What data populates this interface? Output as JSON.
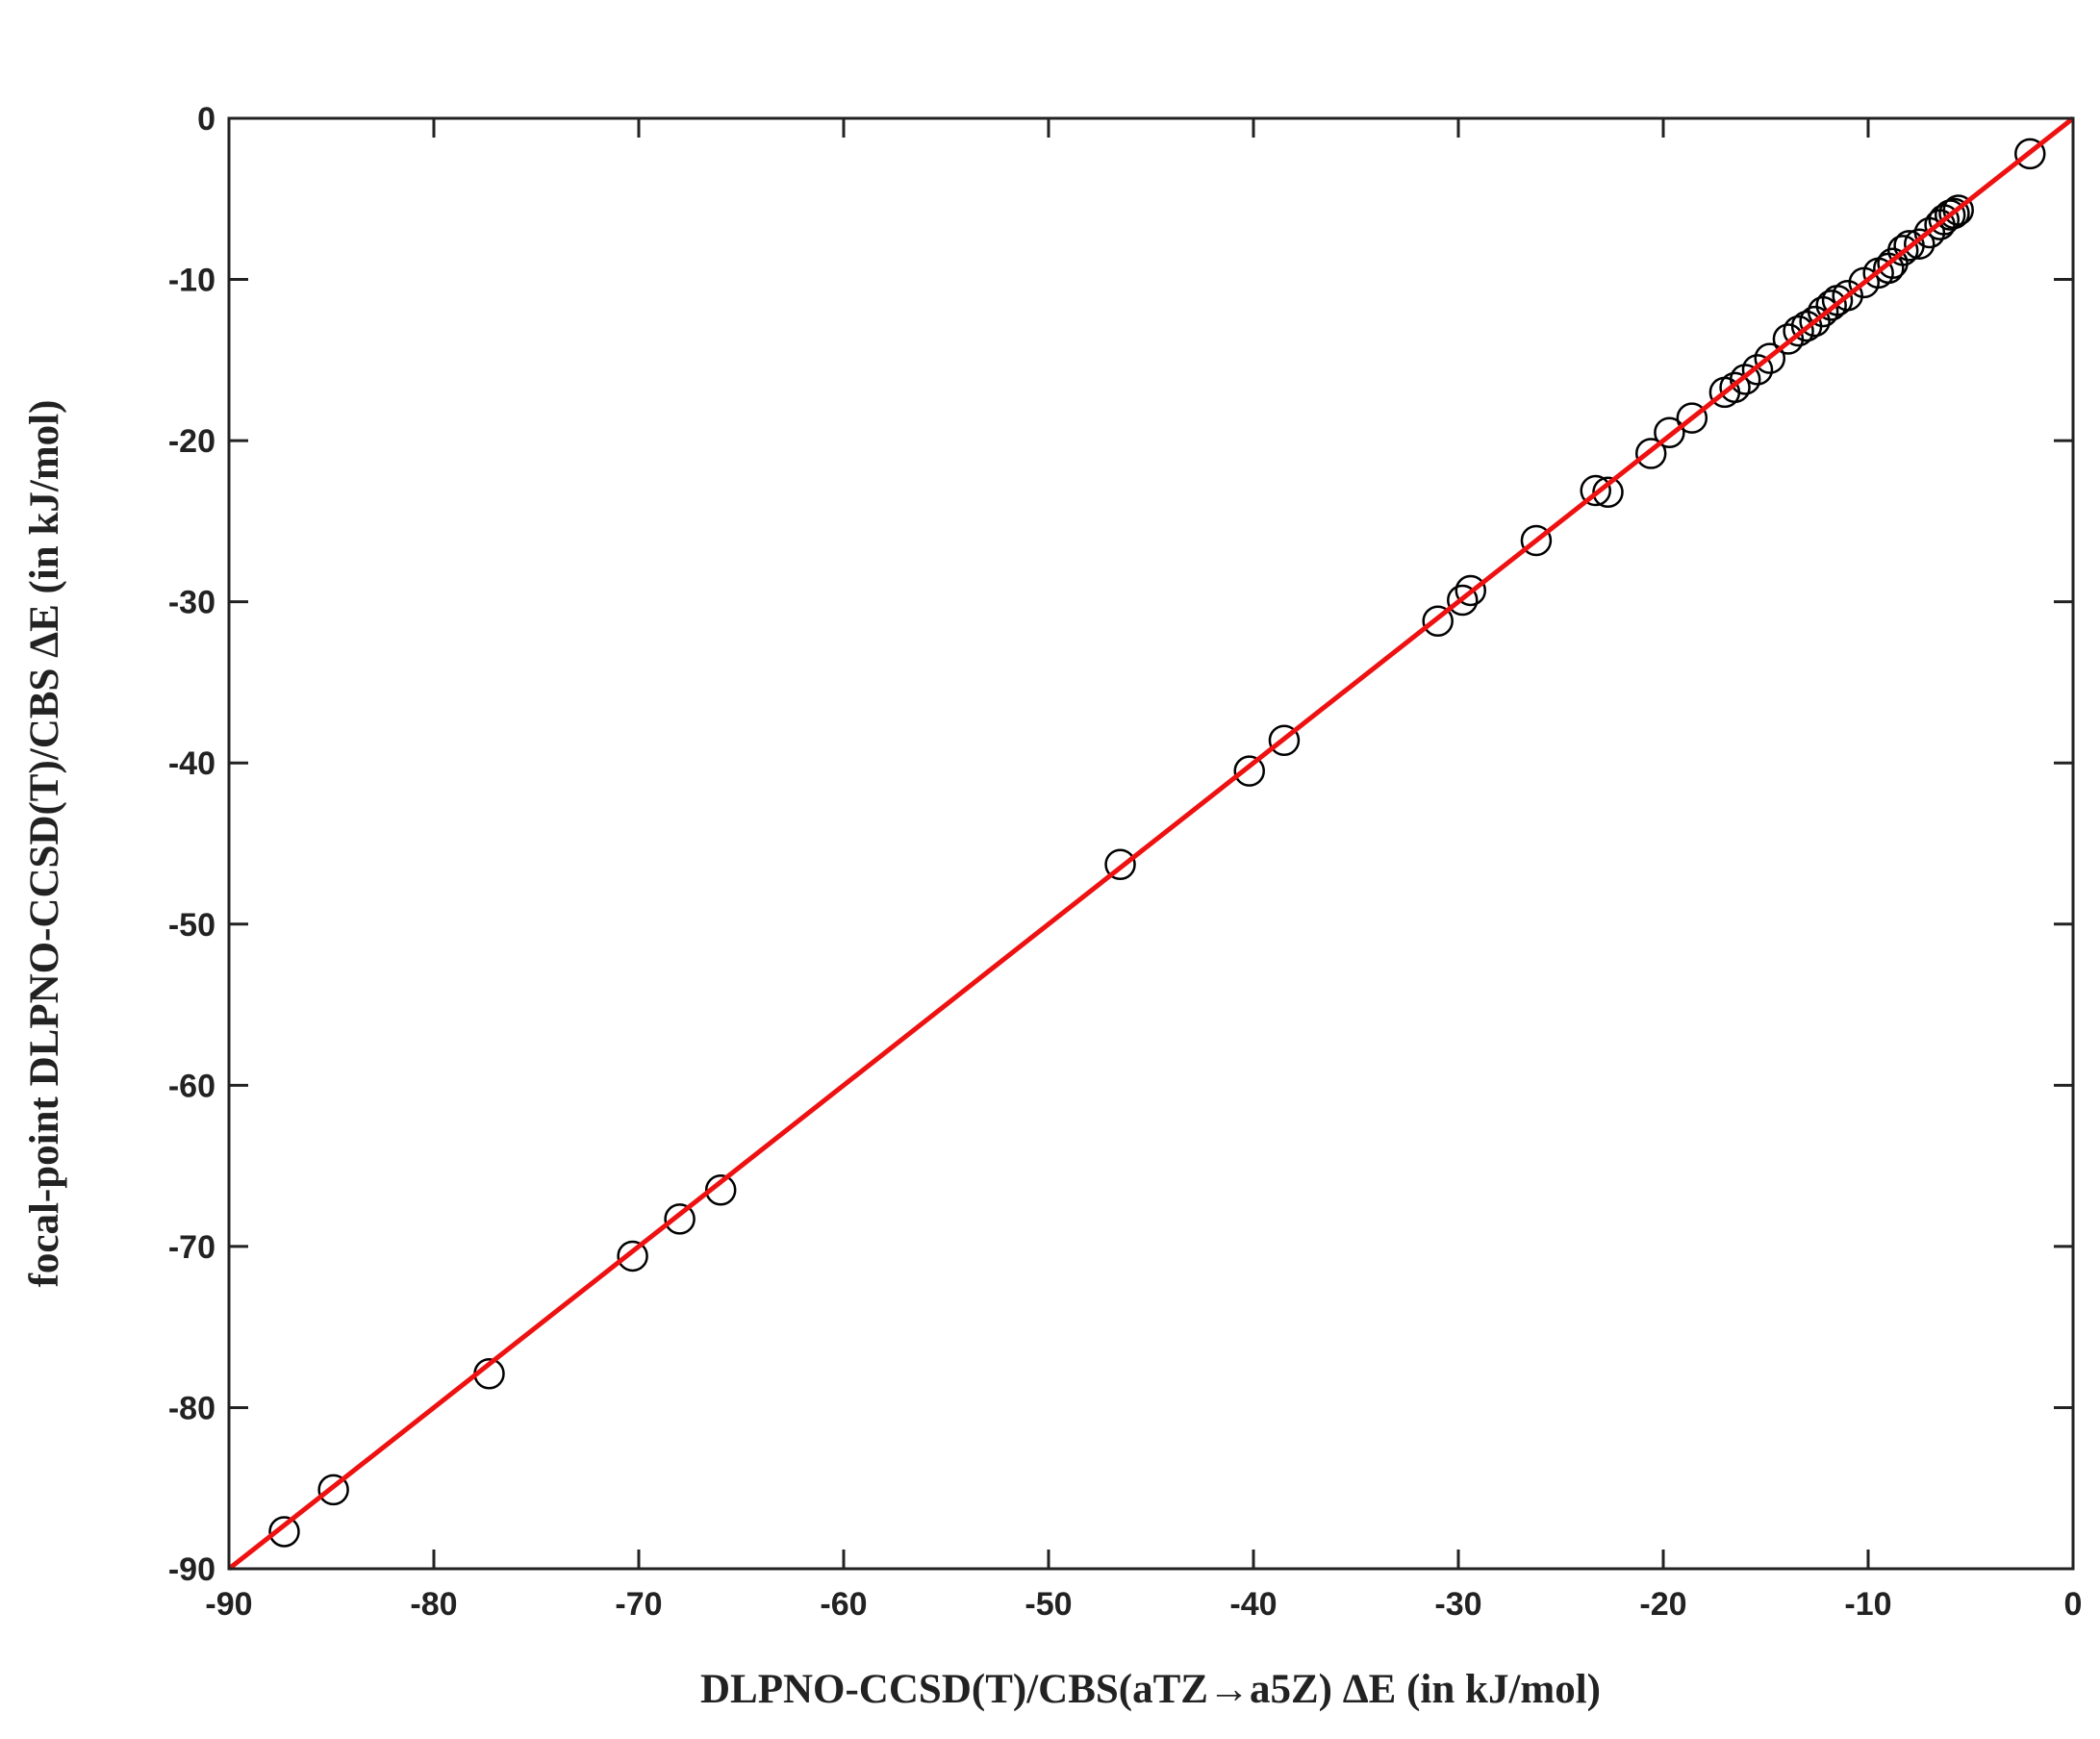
{
  "chart_data": {
    "type": "scatter",
    "x_label": "DLPNO-CCSD(T)/CBS(aTZ→a5Z)  ΔE (in kJ/mol)",
    "y_label": "focal-point DLPNO-CCSD(T)/CBS  ΔE (in kJ/mol)",
    "xlim": [
      -90,
      0
    ],
    "ylim": [
      -90,
      0
    ],
    "xticks": [
      -90,
      -80,
      -70,
      -60,
      -50,
      -40,
      -30,
      -20,
      -10,
      0
    ],
    "yticks": [
      -90,
      -80,
      -70,
      -60,
      -50,
      -40,
      -30,
      -20,
      -10,
      0
    ],
    "series": [
      {
        "color": "#000000",
        "x": [
          -87.3,
          -84.9,
          -77.3,
          -70.3,
          -68.0,
          -66.0,
          -46.5,
          -40.2,
          -38.5,
          -31.0,
          -29.8,
          -29.4,
          -26.2,
          -23.3,
          -22.7,
          -20.6,
          -19.7,
          -18.6,
          -17.0,
          -16.5,
          -16.0,
          -15.4,
          -14.8,
          -13.9,
          -13.4,
          -13.0,
          -12.6,
          -12.2,
          -11.8,
          -11.5,
          -11.0,
          -10.2,
          -9.5,
          -9.0,
          -8.8,
          -8.3,
          -8.0,
          -7.5,
          -7.0,
          -6.5,
          -6.3,
          -6.0,
          -5.8,
          -5.6,
          -2.1
        ],
        "values": [
          -87.7,
          -85.1,
          -77.9,
          -70.6,
          -68.3,
          -66.5,
          -46.3,
          -40.5,
          -38.6,
          -31.2,
          -29.9,
          -29.3,
          -26.2,
          -23.1,
          -23.2,
          -20.8,
          -19.5,
          -18.6,
          -17.0,
          -16.7,
          -16.2,
          -15.6,
          -14.9,
          -13.7,
          -13.2,
          -12.9,
          -12.6,
          -12.0,
          -11.6,
          -11.3,
          -11.0,
          -10.2,
          -9.6,
          -9.3,
          -9.0,
          -8.2,
          -7.9,
          -7.8,
          -7.1,
          -6.6,
          -6.3,
          -6.0,
          -5.9,
          -5.7,
          -2.2
        ]
      },
      {
        "color": "#ee1111",
        "line": true,
        "x": [
          -90,
          0
        ],
        "values": [
          -90,
          0
        ]
      }
    ]
  }
}
